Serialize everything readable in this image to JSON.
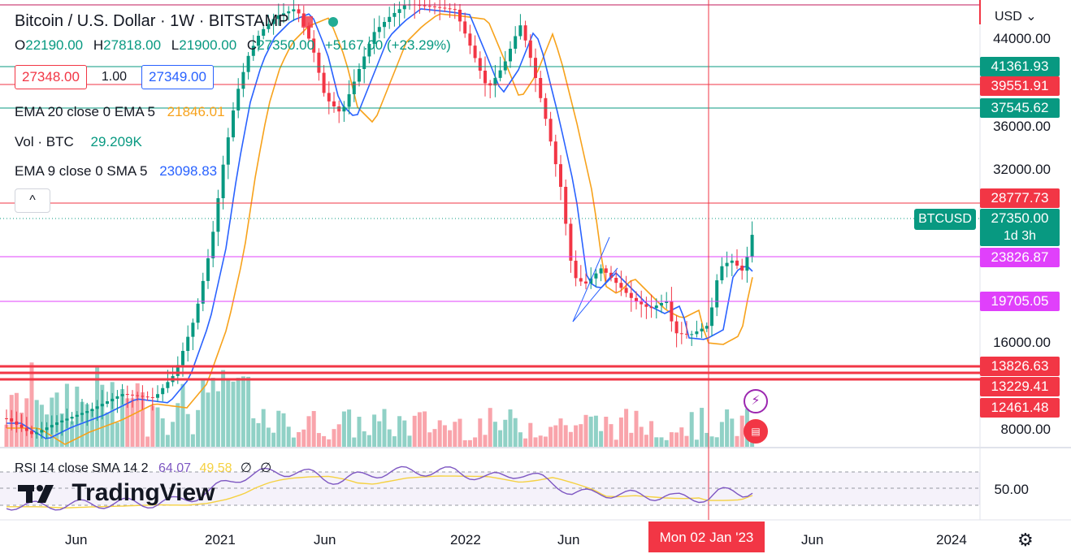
{
  "header": {
    "title": "Bitcoin / U.S. Dollar · 1W · BITSTAMP",
    "ohlc": {
      "o_key": "O",
      "o_val": "22190.00",
      "h_key": "H",
      "h_val": "27818.00",
      "l_key": "L",
      "l_val": "21900.00",
      "c_key": "C",
      "c_val": "27350.00",
      "change": "+5167.00 (+23.29%)"
    }
  },
  "order_panel": {
    "sell_price": "27348.00",
    "quantity": "1.00",
    "buy_price": "27349.00"
  },
  "indicators": {
    "ema20": {
      "label": "EMA 20 close 0 EMA 5",
      "value": "21846.01"
    },
    "volume": {
      "label": "Vol · BTC",
      "value": "29.209K"
    },
    "ema9": {
      "label": "EMA 9 close 0 SMA 5",
      "value": "23098.83"
    },
    "collapse_glyph": "^"
  },
  "price_axis": {
    "currency": "USD",
    "ticks": [
      "44000.00",
      "36000.00",
      "32000.00",
      "16000.00",
      "8000.00"
    ]
  },
  "horizontal_levels": [
    {
      "value": "41361.93",
      "color": "#089981"
    },
    {
      "value": "39551.91",
      "color": "#f23645"
    },
    {
      "value": "37545.62",
      "color": "#089981"
    },
    {
      "value": "28777.73",
      "color": "#f23645"
    },
    {
      "value": "23826.87",
      "color": "#e040fb"
    },
    {
      "value": "19705.05",
      "color": "#e040fb"
    },
    {
      "value": "13826.63",
      "color": "#f23645"
    },
    {
      "value": "13229.41",
      "color": "#f23645"
    },
    {
      "value": "12461.48",
      "color": "#f23645"
    }
  ],
  "current_price": {
    "symbol": "BTCUSD",
    "price": "27350.00",
    "countdown": "1d 3h",
    "color": "#089981"
  },
  "rsi": {
    "label": "RSI 14 close SMA 14 2",
    "value": "64.07",
    "sma_value": "49.58",
    "extra1": "∅",
    "extra2": "∅",
    "axis_tick": "50.00"
  },
  "brand": {
    "name": "TradingView"
  },
  "time_axis": {
    "labels": [
      "Jun",
      "2021",
      "Jun",
      "2022",
      "Jun",
      "Jun",
      "2024"
    ],
    "crosshair_date": "Mon 02 Jan '23"
  },
  "icons": {
    "lightning": "lightning-icon",
    "us_flag": "us-flag-icon",
    "settings": "gear-icon"
  },
  "colors": {
    "up": "#089981",
    "down": "#f23645",
    "ema20": "#f7a21b",
    "ema9": "#2962ff",
    "rsi": "#7e57c2",
    "rsi_sma": "#f5d142"
  }
}
